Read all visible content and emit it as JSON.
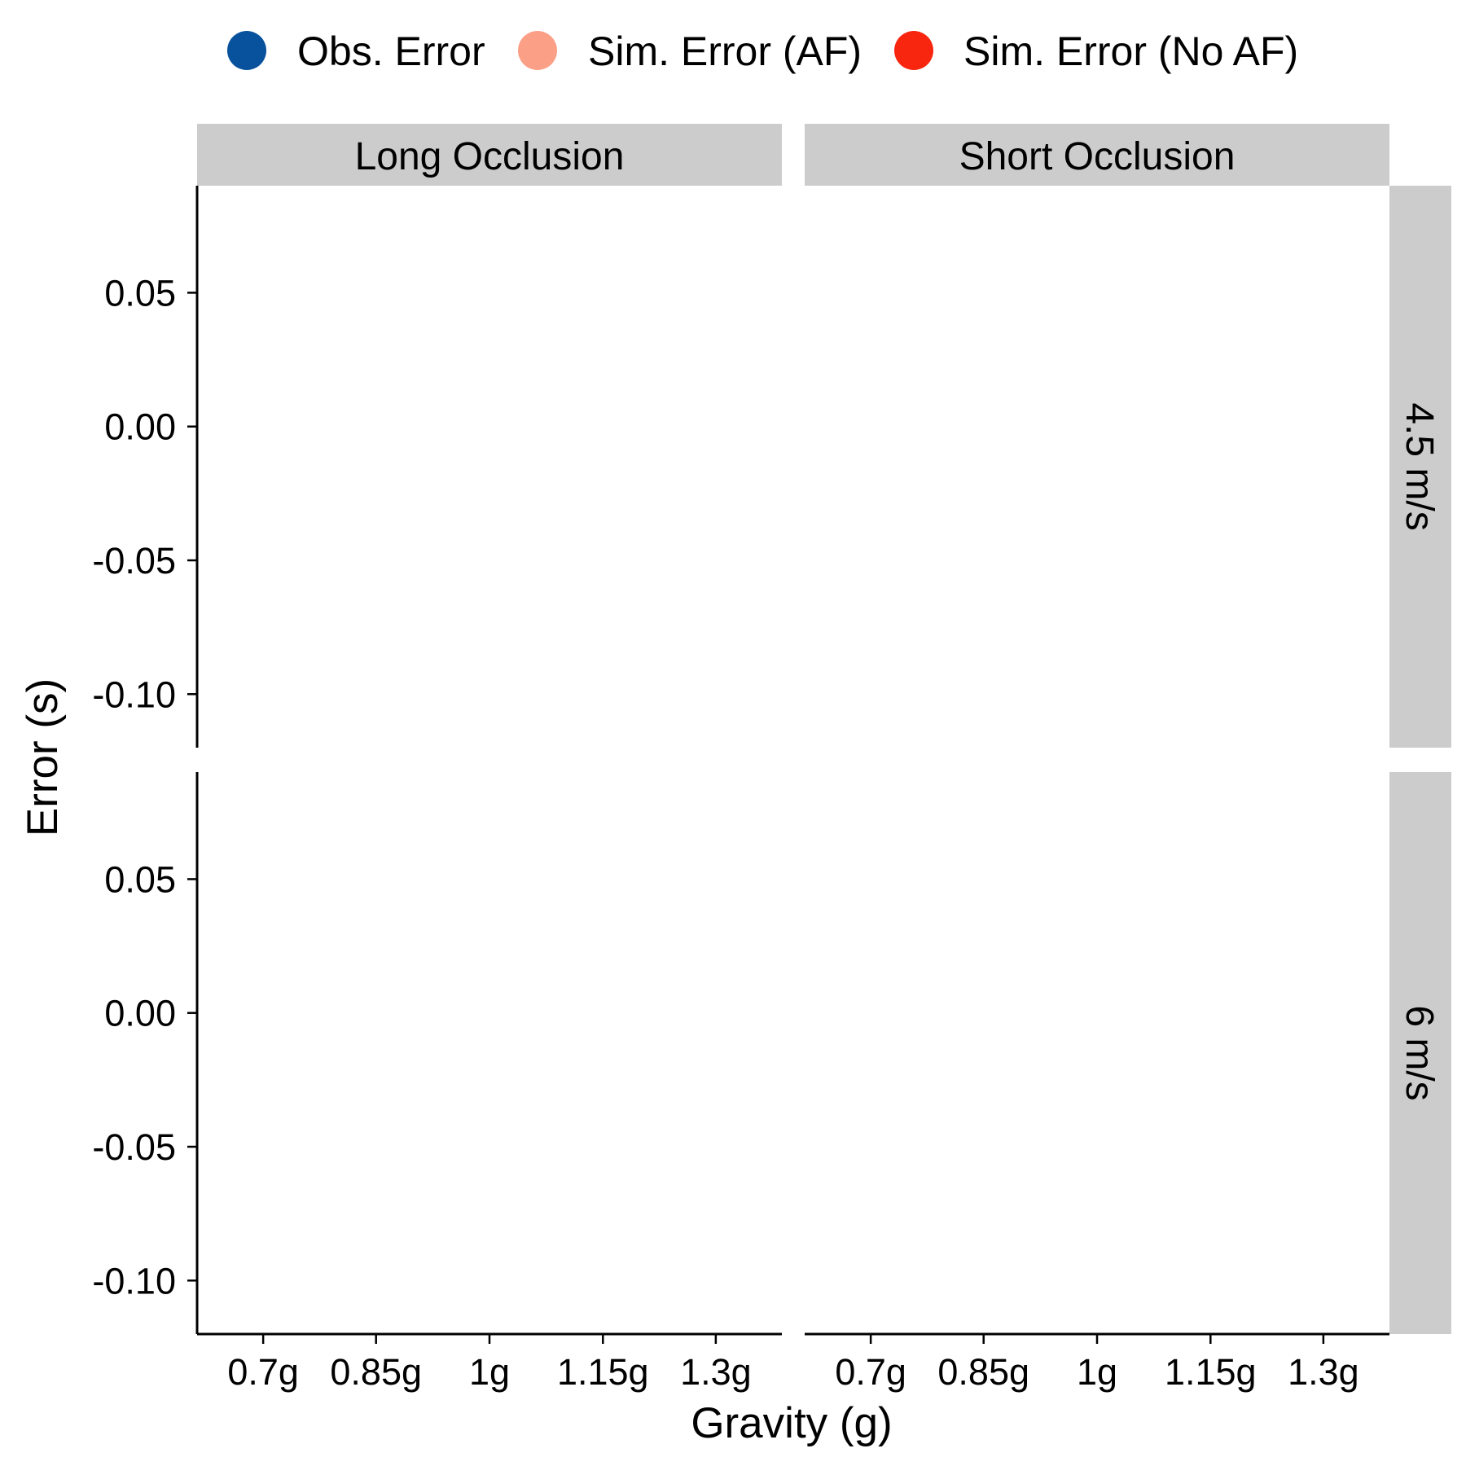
{
  "chart_data": {
    "type": "scatter",
    "legend": {
      "position": "top",
      "entries": [
        {
          "label": "Obs. Error",
          "color": "#08519c"
        },
        {
          "label": "Sim. Error (AF)",
          "color": "#fc9f87"
        },
        {
          "label": "Sim. Error (No AF)",
          "color": "#f8250f"
        }
      ]
    },
    "facet_columns": [
      "Long Occlusion",
      "Short Occlusion"
    ],
    "facet_rows": [
      "4.5 m/s",
      "6 m/s"
    ],
    "xlabel": "Gravity (g)",
    "ylabel": "Error (s)",
    "x_categories": [
      "0.7g",
      "0.85g",
      "1g",
      "1.15g",
      "1.3g"
    ],
    "y_ticks": [
      0.05,
      0.0,
      -0.05,
      -0.1
    ],
    "y_tick_labels": [
      "0.05",
      "0.00",
      "-0.05",
      "-0.10"
    ],
    "ylim": [
      -0.12,
      0.09
    ],
    "grid": false,
    "series": [
      {
        "name": "Obs. Error",
        "points": []
      },
      {
        "name": "Sim. Error (AF)",
        "points": []
      },
      {
        "name": "Sim. Error (No AF)",
        "points": []
      }
    ],
    "strip_fill": "#cccccc"
  }
}
